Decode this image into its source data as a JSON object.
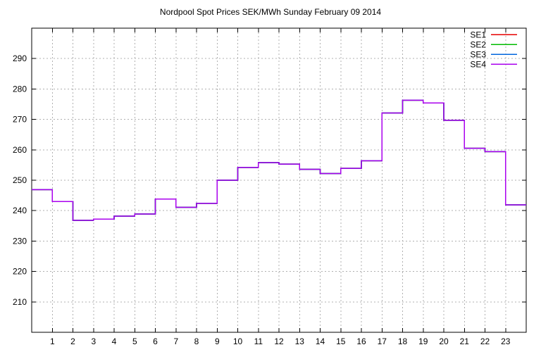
{
  "title": "Nordpool Spot Prices SEK/MWh Sunday February 09 2014",
  "chart_data": {
    "type": "line",
    "line_style": "steps",
    "title": "Nordpool Spot Prices SEK/MWh Sunday February 09 2014",
    "xlabel": "",
    "ylabel": "",
    "xlim": [
      0,
      24
    ],
    "ylim": [
      200,
      300
    ],
    "grid": true,
    "legend_position": "top-right-inside",
    "hours": [
      0,
      1,
      2,
      3,
      4,
      5,
      6,
      7,
      8,
      9,
      10,
      11,
      12,
      13,
      14,
      15,
      16,
      17,
      18,
      19,
      20,
      21,
      22,
      23
    ],
    "values": [
      246.9,
      243.0,
      236.8,
      237.2,
      238.2,
      238.9,
      243.8,
      241.1,
      242.4,
      250.0,
      254.2,
      255.8,
      255.3,
      253.6,
      252.2,
      253.9,
      256.4,
      272.1,
      276.3,
      275.4,
      269.7,
      260.5,
      259.4,
      241.9
    ],
    "series": [
      {
        "name": "SE1",
        "color": "#e60000"
      },
      {
        "name": "SE2",
        "color": "#00bb00"
      },
      {
        "name": "SE3",
        "color": "#0066dd"
      },
      {
        "name": "SE4",
        "color": "#aa00ee"
      }
    ],
    "note": "All four price areas overlap exactly for every hour; SE4 is drawn last so only the purple step line is visible.",
    "x_ticks": [
      1,
      2,
      3,
      4,
      5,
      6,
      7,
      8,
      9,
      10,
      11,
      12,
      13,
      14,
      15,
      16,
      17,
      18,
      19,
      20,
      21,
      22,
      23
    ],
    "y_ticks": [
      210,
      220,
      230,
      240,
      250,
      260,
      270,
      280,
      290
    ],
    "grid_color": "#b0b0b0",
    "border_color": "#000000"
  }
}
